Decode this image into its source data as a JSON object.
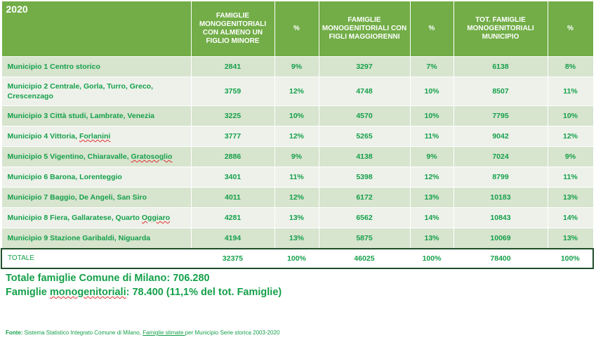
{
  "table": {
    "year": "2020",
    "headers": {
      "col1": "FAMIGLIE MONOGENITORIALI CON ALMENO UN FIGLIO MINORE",
      "col2": "%",
      "col3": "FAMIGLIE MONOGENITORIALI CON FIGLI MAGGIORENNI",
      "col4": "%",
      "col5": "TOT. FAMIGLIE MONOGENITORIALI MUNICIPIO",
      "col6": "%"
    },
    "rows": [
      {
        "name": "Municipio 1 Centro storico",
        "minori": "2841",
        "pct_minori": "9%",
        "maggiorenni": "3297",
        "pct_maggiorenni": "7%",
        "totale": "6138",
        "pct_totale": "8%"
      },
      {
        "name": "Municipio 2 Centrale, Gorla, Turro, Greco, Crescenzago",
        "minori": "3759",
        "pct_minori": "12%",
        "maggiorenni": "4748",
        "pct_maggiorenni": "10%",
        "totale": "8507",
        "pct_totale": "11%"
      },
      {
        "name": "Municipio 3 Città studi, Lambrate, Venezia",
        "minori": "3225",
        "pct_minori": "10%",
        "maggiorenni": "4570",
        "pct_maggiorenni": "10%",
        "totale": "7795",
        "pct_totale": "10%"
      },
      {
        "name_parts": [
          "Municipio 4 Vittoria, ",
          "Forlanini"
        ],
        "minori": "3777",
        "pct_minori": "12%",
        "maggiorenni": "5265",
        "pct_maggiorenni": "11%",
        "totale": "9042",
        "pct_totale": "12%"
      },
      {
        "name_parts": [
          "Municipio 5 Vigentino, Chiaravalle, ",
          "Gratosoglio"
        ],
        "minori": "2886",
        "pct_minori": "9%",
        "maggiorenni": "4138",
        "pct_maggiorenni": "9%",
        "totale": "7024",
        "pct_totale": "9%"
      },
      {
        "name": "Municipio 6 Barona, Lorenteggio",
        "minori": "3401",
        "pct_minori": "11%",
        "maggiorenni": "5398",
        "pct_maggiorenni": "12%",
        "totale": "8799",
        "pct_totale": "11%"
      },
      {
        "name": "Municipio 7 Baggio, De Angeli, San Siro",
        "minori": "4011",
        "pct_minori": "12%",
        "maggiorenni": "6172",
        "pct_maggiorenni": "13%",
        "totale": "10183",
        "pct_totale": "13%"
      },
      {
        "name_parts": [
          "Municipio 8 Fiera, Gallaratese, Quarto ",
          "Oggiaro"
        ],
        "minori": "4281",
        "pct_minori": "13%",
        "maggiorenni": "6562",
        "pct_maggiorenni": "14%",
        "totale": "10843",
        "pct_totale": "14%"
      },
      {
        "name": "Municipio 9 Stazione Garibaldi, Niguarda",
        "minori": "4194",
        "pct_minori": "13%",
        "maggiorenni": "5875",
        "pct_maggiorenni": "13%",
        "totale": "10069",
        "pct_totale": "13%"
      }
    ],
    "total": {
      "name": "TOTALE",
      "minori": "32375",
      "pct_minori": "100%",
      "maggiorenni": "46025",
      "pct_maggiorenni": "100%",
      "totale": "78400",
      "pct_totale": "100%"
    }
  },
  "summary": {
    "line1": "Totale famiglie Comune di Milano: 706.280",
    "line2_prefix": "Famiglie ",
    "line2_word": "monogenitoriali",
    "line2_suffix": ": 78.400 (11,1% del tot. Famiglie)"
  },
  "source": {
    "label": "Fonte:",
    "text1": " Sistema Statistico Integrato Comune di Milano, ",
    "link": "Famiglie stimate ",
    "text2": "per Municipio Serie storica 2003-2020"
  },
  "colors": {
    "header_bg": "#72ad47",
    "row_dark": "#d7e4ce",
    "row_light": "#edf1ea",
    "text_green": "#15a04a",
    "total_border": "#1f4e2a"
  }
}
